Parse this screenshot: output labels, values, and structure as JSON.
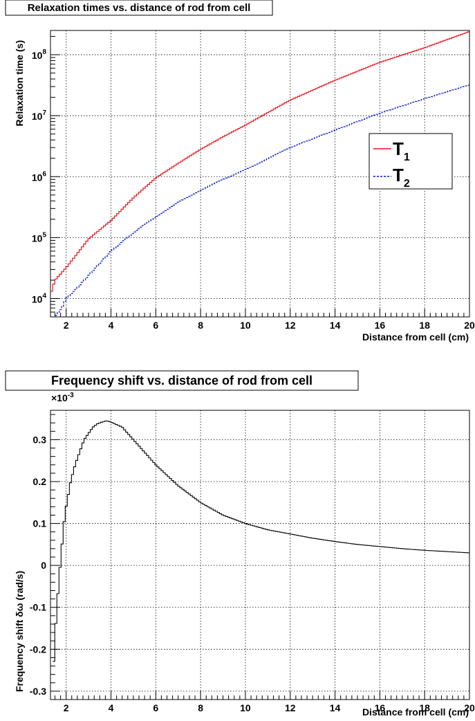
{
  "chart_data": [
    {
      "type": "line",
      "title": "Relaxation times vs. distance of rod from cell",
      "xlabel": "Distance from cell (cm)",
      "ylabel": "Relaxation time (s)",
      "xlim": [
        1.3,
        20
      ],
      "ylim": [
        5000,
        250000000
      ],
      "yscale": "log",
      "grid": true,
      "legend_position": "right",
      "x_ticks": [
        2,
        4,
        6,
        8,
        10,
        12,
        14,
        16,
        18,
        20
      ],
      "x_tick_labels": [
        "2",
        "4",
        "6",
        "8",
        "10",
        "12",
        "14",
        "16",
        "18",
        "20"
      ],
      "y_ticks": [
        10000,
        100000,
        1000000,
        10000000,
        100000000
      ],
      "y_tick_labels": [
        {
          "base": "10",
          "exp": "4"
        },
        {
          "base": "10",
          "exp": "5"
        },
        {
          "base": "10",
          "exp": "6"
        },
        {
          "base": "10",
          "exp": "7"
        },
        {
          "base": "10",
          "exp": "8"
        }
      ],
      "series": [
        {
          "name": "T",
          "subscript": "1",
          "color": "#e8141c",
          "style": "solid",
          "x": [
            1.3,
            1.5,
            2,
            2.5,
            3,
            4,
            5,
            6,
            7,
            8,
            9,
            10,
            12,
            14,
            16,
            18,
            20
          ],
          "y": [
            11500,
            20000,
            32000,
            55000,
            95000,
            190000,
            450000,
            950000,
            1650000,
            2800000,
            4500000,
            7000000,
            18000000,
            38000000,
            75000000,
            130000000,
            240000000
          ]
        },
        {
          "name": "T",
          "subscript": "2",
          "color": "#0010cc",
          "style": "dashed",
          "x": [
            1.5,
            1.8,
            2,
            2.5,
            3,
            4,
            5,
            6,
            7,
            8,
            9,
            10,
            12,
            14,
            16,
            18,
            20
          ],
          "y": [
            5000,
            7000,
            10000,
            15000,
            24000,
            60000,
            120000,
            220000,
            380000,
            600000,
            900000,
            1300000,
            3000000,
            5800000,
            11000000,
            19000000,
            32000000
          ]
        }
      ]
    },
    {
      "type": "line",
      "title": "Frequency shift vs. distance of rod from cell",
      "xlabel": "Distance from cell (cm)",
      "ylabel": "Frequency shift δω (rad/s)",
      "multiplier_base": "×10",
      "multiplier_exp": "-3",
      "xlim": [
        1.3,
        20
      ],
      "ylim": [
        -0.32,
        0.37
      ],
      "grid": true,
      "x_ticks": [
        2,
        4,
        6,
        8,
        10,
        12,
        14,
        16,
        18,
        20
      ],
      "x_tick_labels": [
        "2",
        "4",
        "6",
        "8",
        "10",
        "12",
        "14",
        "16",
        "18",
        "20"
      ],
      "y_ticks": [
        -0.3,
        -0.2,
        -0.1,
        0,
        0.1,
        0.2,
        0.3
      ],
      "y_tick_labels": [
        "-0.3",
        "-0.2",
        "-0.1",
        "0",
        "0.1",
        "0.2",
        "0.3"
      ],
      "series": [
        {
          "color": "#000000",
          "style": "solid",
          "x": [
            1.4,
            1.5,
            1.6,
            1.7,
            1.8,
            1.9,
            2.0,
            2.2,
            2.4,
            2.6,
            2.8,
            3.0,
            3.2,
            3.4,
            3.6,
            3.8,
            4.0,
            4.5,
            5.0,
            5.5,
            6.0,
            6.5,
            7.0,
            8.0,
            9.0,
            10.0,
            11.0,
            12.0,
            13.0,
            14.0,
            15.0,
            16.0,
            17.0,
            18.0,
            19.0,
            20.0
          ],
          "y": [
            -0.28,
            -0.17,
            -0.09,
            -0.02,
            0.04,
            0.1,
            0.14,
            0.2,
            0.24,
            0.27,
            0.3,
            0.315,
            0.33,
            0.338,
            0.342,
            0.345,
            0.342,
            0.33,
            0.3,
            0.27,
            0.24,
            0.215,
            0.19,
            0.15,
            0.12,
            0.1,
            0.085,
            0.075,
            0.065,
            0.057,
            0.05,
            0.045,
            0.04,
            0.036,
            0.033,
            0.03
          ]
        }
      ]
    }
  ]
}
